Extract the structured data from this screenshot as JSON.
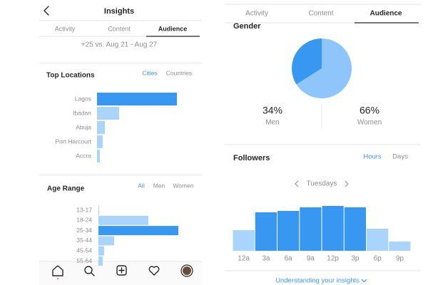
{
  "left": {
    "header": {
      "title": "Insights"
    },
    "tabs": [
      "Activity",
      "Content",
      "Audience"
    ],
    "comparison": "+25 vs. Aug 21 - Aug 27",
    "top_locations": {
      "title": "Top Locations",
      "filters": [
        "Cities",
        "Countries"
      ],
      "categories": [
        "Lagos",
        "Ibadan",
        "Abuja",
        "Port Harcourt",
        "Accra"
      ],
      "values": [
        112,
        31,
        11,
        8,
        4
      ]
    },
    "age_range": {
      "title": "Age Range",
      "filters": [
        "All",
        "Men",
        "Women"
      ],
      "categories": [
        "13-17",
        "18-24",
        "25-34",
        "35-44",
        "45-54",
        "55-64"
      ],
      "values": [
        1,
        70,
        112,
        22,
        8,
        6
      ]
    }
  },
  "right": {
    "tabs": [
      "Activity",
      "Content",
      "Audience"
    ],
    "gender": {
      "title": "Gender",
      "categories": [
        "Men",
        "Women"
      ],
      "values": [
        34,
        66
      ],
      "value_labels": [
        "34%",
        "66%"
      ]
    },
    "followers": {
      "title": "Followers",
      "filters": [
        "Hours",
        "Days"
      ],
      "day": "Tuesdays",
      "categories": [
        "12a",
        "3a",
        "6a",
        "9a",
        "12p",
        "3p",
        "6p",
        "9p"
      ],
      "values": [
        29,
        54,
        56,
        61,
        63,
        61,
        31,
        13
      ]
    },
    "link": "Understanding your insights"
  }
}
